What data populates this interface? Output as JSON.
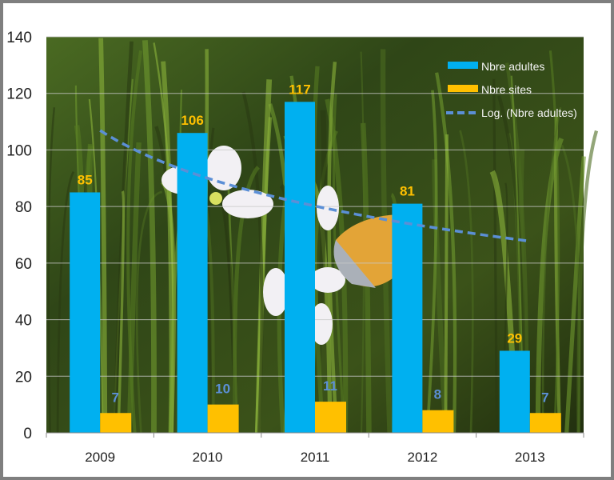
{
  "chart_data": {
    "type": "bar",
    "title": "",
    "xlabel": "",
    "ylabel": "",
    "categories": [
      "2009",
      "2010",
      "2011",
      "2012",
      "2013"
    ],
    "ylim": [
      0,
      140
    ],
    "yticks": [
      0,
      20,
      40,
      60,
      80,
      100,
      120,
      140
    ],
    "grid": true,
    "legend_position": "top-right",
    "background": "photo of grass with white flowers and an orange butterfly",
    "series": [
      {
        "name": "Nbre adultes",
        "type": "bar",
        "color": "#00B0F0",
        "label_color": "#FFC000",
        "values": [
          85,
          106,
          117,
          81,
          29
        ]
      },
      {
        "name": "Nbre sites",
        "type": "bar",
        "color": "#FFC000",
        "label_color": "#5B8FD6",
        "values": [
          7,
          10,
          11,
          8,
          7
        ]
      }
    ],
    "trendline": {
      "name": "Log. (Nbre adultes)",
      "type": "logarithmic",
      "of": "Nbre adultes",
      "color": "#5B8FD6",
      "style": "dashed"
    }
  }
}
